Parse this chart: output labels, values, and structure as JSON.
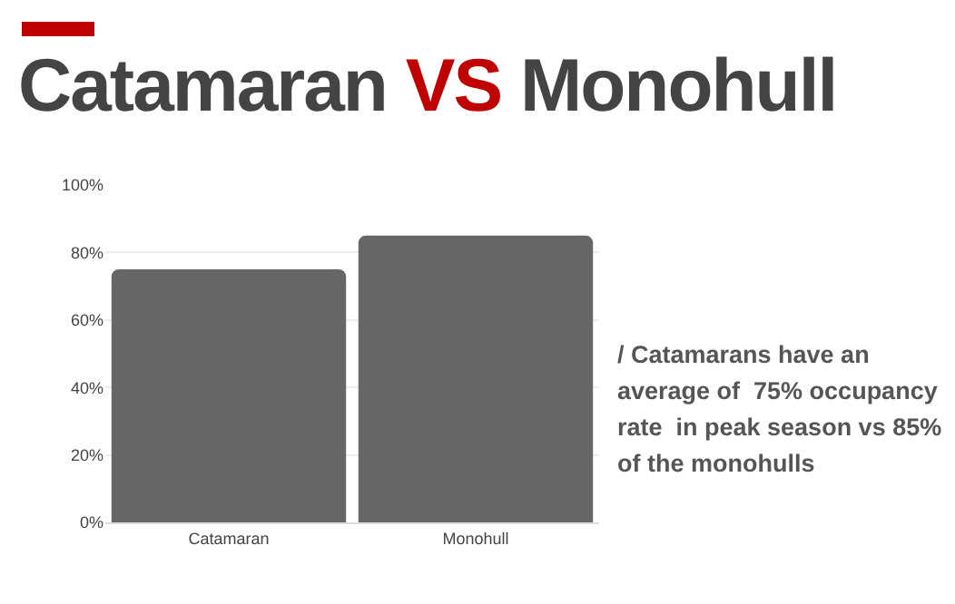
{
  "chart_data": {
    "type": "bar",
    "title": "Catamaran VS Monohull",
    "categories": [
      "Catamaran",
      "Monohull"
    ],
    "values": [
      75,
      85
    ],
    "color": "#666666",
    "ylim": [
      0,
      100
    ],
    "yticks": [
      {
        "value": 0,
        "label": "0%"
      },
      {
        "value": 20,
        "label": "20%"
      },
      {
        "value": 40,
        "label": "40%"
      },
      {
        "value": 60,
        "label": "60%"
      },
      {
        "value": 80,
        "label": "80%"
      },
      {
        "value": 100,
        "label": "100%"
      }
    ],
    "grid": true,
    "annotations": [
      "/ Catamarans have an average of  75% occupancy rate  in peak season vs 85% of the monohulls"
    ]
  }
}
